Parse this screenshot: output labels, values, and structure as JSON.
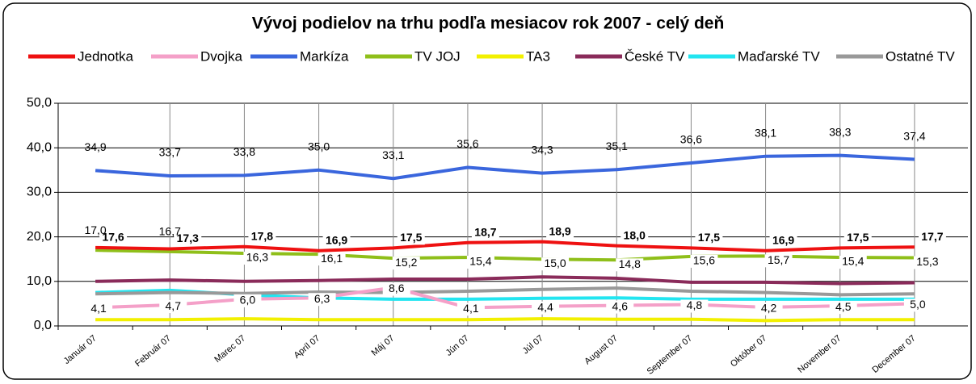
{
  "chart_data": {
    "type": "line",
    "title": "Vývoj  podielov na trhu podľa mesiacov rok 2007 - celý deň",
    "categories": [
      "Január 07",
      "Február 07",
      "Marec 07",
      "Apríl 07",
      "Máj 07",
      "Jún 07",
      "Júl 07",
      "August 07",
      "September 07",
      "Október 07",
      "November 07",
      "December 07"
    ],
    "series": [
      {
        "name": "Jednotka",
        "color": "#ee1111",
        "values": [
          17.6,
          17.3,
          17.8,
          16.9,
          17.5,
          18.7,
          18.9,
          18.0,
          17.5,
          16.9,
          17.5,
          17.7
        ],
        "value_labels": [
          "17,6",
          "17,3",
          "17,8",
          "16,9",
          "17,5",
          "18,7",
          "18,9",
          "18,0",
          "17,5",
          "16,9",
          "17,5",
          "17,7"
        ]
      },
      {
        "name": "Dvojka",
        "color": "#f4a0c8",
        "values": [
          4.1,
          4.7,
          6.0,
          6.3,
          8.6,
          4.1,
          4.4,
          4.6,
          4.8,
          4.2,
          4.5,
          5.0
        ],
        "value_labels": [
          "4,1",
          "4,7",
          "6,0",
          "6,3",
          "8,6",
          "4,1",
          "4,4",
          "4,6",
          "4,8",
          "4,2",
          "4,5",
          "5,0"
        ]
      },
      {
        "name": "Markíza",
        "color": "#3a66dd",
        "values": [
          34.9,
          33.7,
          33.8,
          35.0,
          33.1,
          35.6,
          34.3,
          35.1,
          36.6,
          38.1,
          38.3,
          37.4
        ],
        "value_labels": [
          "34,9",
          "33,7",
          "33,8",
          "35,0",
          "33,1",
          "35,6",
          "34,3",
          "35,1",
          "36,6",
          "38,1",
          "38,3",
          "37,4"
        ]
      },
      {
        "name": "TV  JOJ",
        "color": "#8fbf1a",
        "values": [
          17.0,
          16.7,
          16.3,
          16.1,
          15.2,
          15.4,
          15.0,
          14.8,
          15.6,
          15.7,
          15.4,
          15.3
        ],
        "value_labels": [
          "17,0",
          "16,7",
          "16,3",
          "16,1",
          "15,2",
          "15,4",
          "15,0",
          "14,8",
          "15,6",
          "15,7",
          "15,4",
          "15,3"
        ]
      },
      {
        "name": "TA3",
        "color": "#f2f000",
        "values": [
          1.4,
          1.4,
          1.6,
          1.4,
          1.4,
          1.4,
          1.6,
          1.5,
          1.5,
          1.2,
          1.4,
          1.4
        ]
      },
      {
        "name": "České TV",
        "color": "#8a2b5a",
        "values": [
          10.0,
          10.3,
          10.0,
          10.2,
          10.5,
          10.5,
          11.0,
          10.7,
          9.8,
          9.8,
          9.5,
          9.7
        ]
      },
      {
        "name": "Maďarské TV",
        "color": "#22e5f0",
        "values": [
          7.5,
          8.0,
          7.0,
          6.3,
          6.0,
          6.0,
          6.2,
          6.3,
          6.0,
          6.0,
          6.0,
          6.0
        ]
      },
      {
        "name": "Ostatné TV",
        "color": "#999999",
        "values": [
          7.2,
          7.5,
          7.3,
          7.6,
          7.5,
          7.8,
          8.2,
          8.5,
          7.8,
          7.5,
          7.0,
          7.2
        ]
      }
    ],
    "ylim": [
      0,
      50
    ],
    "yticks": [
      {
        "value": 0,
        "label": "0,0"
      },
      {
        "value": 10,
        "label": "10,0"
      },
      {
        "value": 20,
        "label": "20,0"
      },
      {
        "value": 30,
        "label": "30,0"
      },
      {
        "value": 40,
        "label": "40,0"
      },
      {
        "value": 50,
        "label": "50,0"
      }
    ],
    "grid": true
  }
}
